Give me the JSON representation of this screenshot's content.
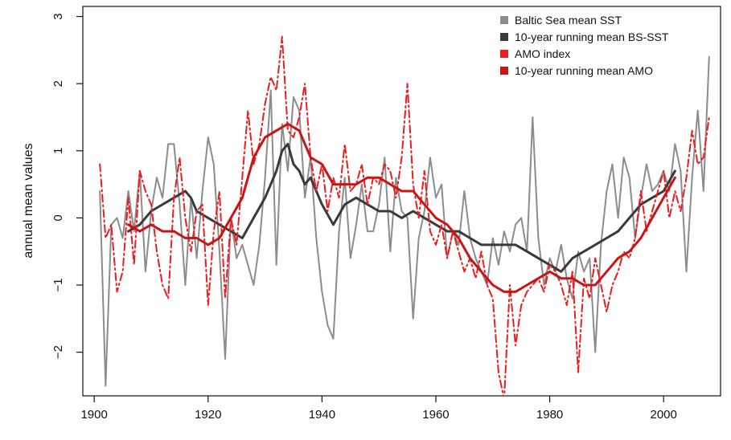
{
  "chart_data": {
    "type": "line",
    "title": "",
    "xlabel": "",
    "ylabel": "annual mean values",
    "xlim": [
      1898,
      2010
    ],
    "ylim": [
      -2.65,
      3.15
    ],
    "x_ticks": [
      1900,
      1920,
      1940,
      1960,
      1980,
      2000
    ],
    "y_ticks": [
      -2,
      -1,
      0,
      1,
      2,
      3
    ],
    "x_tick_labels": [
      "1900",
      "1920",
      "1940",
      "1960",
      "1980",
      "2000"
    ],
    "y_tick_labels": [
      "−2",
      "−1",
      "0",
      "1",
      "2",
      "3"
    ],
    "grid": false,
    "legend_position": "top-right",
    "series": [
      {
        "name": "Baltic Sea mean SST",
        "color": "#8c8c8c",
        "line_style": "solid",
        "x": [
          1901,
          1902,
          1903,
          1904,
          1905,
          1906,
          1907,
          1908,
          1909,
          1910,
          1911,
          1912,
          1913,
          1914,
          1915,
          1916,
          1917,
          1918,
          1919,
          1920,
          1921,
          1922,
          1923,
          1924,
          1925,
          1926,
          1927,
          1928,
          1929,
          1930,
          1931,
          1932,
          1933,
          1934,
          1935,
          1936,
          1937,
          1938,
          1939,
          1940,
          1941,
          1942,
          1943,
          1944,
          1945,
          1946,
          1947,
          1948,
          1949,
          1950,
          1951,
          1952,
          1953,
          1954,
          1955,
          1956,
          1957,
          1958,
          1959,
          1960,
          1961,
          1962,
          1963,
          1964,
          1965,
          1966,
          1967,
          1968,
          1969,
          1970,
          1971,
          1972,
          1973,
          1974,
          1975,
          1976,
          1977,
          1978,
          1979,
          1980,
          1981,
          1982,
          1983,
          1984,
          1985,
          1986,
          1987,
          1988,
          1989,
          1990,
          1991,
          1992,
          1993,
          1994,
          1995,
          1996,
          1997,
          1998,
          1999,
          2000,
          2001,
          2002,
          2003,
          2004,
          2005,
          2006,
          2007,
          2008
        ],
        "y": [
          0.4,
          -2.5,
          -0.1,
          0.0,
          -0.3,
          0.4,
          -0.2,
          0.7,
          -0.8,
          0.1,
          0.6,
          0.3,
          1.1,
          1.1,
          0.2,
          -1.0,
          0.3,
          -0.6,
          0.4,
          1.2,
          0.8,
          -0.5,
          -2.1,
          0.0,
          -0.6,
          -0.4,
          -0.7,
          -1.0,
          -0.4,
          0.6,
          1.9,
          -0.7,
          1.4,
          0.7,
          1.8,
          1.6,
          0.3,
          0.9,
          -0.3,
          -1.1,
          -1.6,
          -1.8,
          -0.2,
          0.6,
          -0.6,
          -0.1,
          0.5,
          -0.2,
          -0.2,
          0.2,
          0.9,
          -0.5,
          0.6,
          0.1,
          0.0,
          -1.5,
          -0.3,
          0.1,
          0.9,
          0.3,
          0.5,
          -0.6,
          -0.2,
          -0.4,
          0.4,
          -0.3,
          -0.6,
          -0.8,
          -1.0,
          -0.3,
          -0.7,
          -0.2,
          -0.5,
          -0.1,
          0.0,
          -0.5,
          1.5,
          -0.3,
          -1.0,
          -0.6,
          -0.8,
          -0.4,
          -0.9,
          -1.2,
          -0.5,
          -0.8,
          -0.6,
          -2.0,
          -0.4,
          0.4,
          0.8,
          0.0,
          0.9,
          0.6,
          -0.3,
          0.3,
          0.8,
          0.4,
          0.5,
          0.7,
          0.4,
          1.1,
          0.7,
          -0.8,
          0.6,
          1.6,
          0.4,
          2.4
        ]
      },
      {
        "name": "10-year running mean BS-SST",
        "color": "#3a3a3a",
        "line_style": "solid",
        "x": [
          1906,
          1908,
          1910,
          1912,
          1914,
          1916,
          1917,
          1918,
          1920,
          1922,
          1924,
          1926,
          1928,
          1930,
          1932,
          1933,
          1934,
          1935,
          1936,
          1937,
          1938,
          1940,
          1942,
          1944,
          1946,
          1948,
          1950,
          1952,
          1954,
          1956,
          1958,
          1960,
          1962,
          1964,
          1966,
          1968,
          1970,
          1972,
          1974,
          1976,
          1978,
          1980,
          1982,
          1984,
          1986,
          1988,
          1990,
          1992,
          1994,
          1996,
          1998,
          2000,
          2002
        ],
        "y": [
          -0.2,
          -0.1,
          0.1,
          0.2,
          0.3,
          0.4,
          0.3,
          0.1,
          0.0,
          -0.1,
          -0.2,
          -0.3,
          0.0,
          0.3,
          0.7,
          1.0,
          1.1,
          0.8,
          0.7,
          0.5,
          0.6,
          0.2,
          -0.1,
          0.2,
          0.3,
          0.2,
          0.1,
          0.1,
          0.0,
          0.1,
          0.0,
          -0.1,
          -0.2,
          -0.2,
          -0.3,
          -0.4,
          -0.4,
          -0.4,
          -0.4,
          -0.5,
          -0.6,
          -0.7,
          -0.8,
          -0.6,
          -0.5,
          -0.4,
          -0.3,
          -0.2,
          0.0,
          0.2,
          0.3,
          0.4,
          0.7
        ]
      },
      {
        "name": "AMO index",
        "color": "#ee1c1c",
        "line_style": "dashdot",
        "x": [
          1901,
          1902,
          1903,
          1904,
          1905,
          1906,
          1907,
          1908,
          1909,
          1910,
          1911,
          1912,
          1913,
          1914,
          1915,
          1916,
          1917,
          1918,
          1919,
          1920,
          1921,
          1922,
          1923,
          1924,
          1925,
          1926,
          1927,
          1928,
          1929,
          1930,
          1931,
          1932,
          1933,
          1934,
          1935,
          1936,
          1937,
          1938,
          1939,
          1940,
          1941,
          1942,
          1943,
          1944,
          1945,
          1946,
          1947,
          1948,
          1949,
          1950,
          1951,
          1952,
          1953,
          1954,
          1955,
          1956,
          1957,
          1958,
          1959,
          1960,
          1961,
          1962,
          1963,
          1964,
          1965,
          1966,
          1967,
          1968,
          1969,
          1970,
          1971,
          1972,
          1973,
          1974,
          1975,
          1976,
          1977,
          1978,
          1979,
          1980,
          1981,
          1982,
          1983,
          1984,
          1985,
          1986,
          1987,
          1988,
          1989,
          1990,
          1991,
          1992,
          1993,
          1994,
          1995,
          1996,
          1997,
          1998,
          1999,
          2000,
          2001,
          2002,
          2003,
          2004,
          2005,
          2006,
          2007,
          2008
        ],
        "y": [
          0.8,
          -0.3,
          -0.1,
          -1.1,
          -0.8,
          0.3,
          -0.7,
          0.7,
          0.4,
          0.2,
          -0.5,
          -1.0,
          -1.2,
          0.3,
          0.9,
          0.0,
          -0.5,
          0.1,
          0.2,
          -1.3,
          -0.2,
          0.4,
          -1.2,
          0.0,
          -0.4,
          0.6,
          1.6,
          0.8,
          1.1,
          1.7,
          2.1,
          1.9,
          2.7,
          1.3,
          1.2,
          1.5,
          2.0,
          0.9,
          0.4,
          0.8,
          0.1,
          0.6,
          0.3,
          1.1,
          0.4,
          0.5,
          0.8,
          0.2,
          0.6,
          0.5,
          0.8,
          0.7,
          0.3,
          0.9,
          2.0,
          0.5,
          0.0,
          0.7,
          -0.2,
          -0.4,
          -0.1,
          -0.6,
          -0.2,
          -0.5,
          -0.8,
          -0.6,
          -0.9,
          -0.5,
          -1.0,
          -1.2,
          -2.3,
          -2.7,
          -1.0,
          -1.9,
          -1.3,
          -1.1,
          -1.0,
          -0.9,
          -1.1,
          -0.7,
          -0.8,
          -1.0,
          -1.3,
          -0.8,
          -2.3,
          -0.9,
          -1.2,
          -0.6,
          -1.0,
          -1.4,
          -1.0,
          -0.8,
          -0.5,
          -0.6,
          -0.3,
          0.4,
          -0.2,
          0.1,
          0.4,
          0.7,
          0.0,
          0.4,
          0.1,
          0.6,
          1.3,
          0.8,
          0.9,
          1.5
        ]
      },
      {
        "name": "10-year running mean AMO",
        "color": "#c91515",
        "line_style": "solid",
        "x": [
          1906,
          1908,
          1910,
          1912,
          1914,
          1916,
          1918,
          1920,
          1922,
          1924,
          1926,
          1928,
          1930,
          1932,
          1934,
          1936,
          1938,
          1940,
          1942,
          1944,
          1946,
          1948,
          1950,
          1952,
          1954,
          1956,
          1958,
          1960,
          1962,
          1964,
          1966,
          1968,
          1970,
          1972,
          1974,
          1976,
          1978,
          1980,
          1982,
          1984,
          1986,
          1988,
          1990,
          1992,
          1994,
          1996,
          1998,
          2000,
          2002
        ],
        "y": [
          -0.1,
          -0.2,
          -0.1,
          -0.2,
          -0.2,
          -0.3,
          -0.3,
          -0.4,
          -0.3,
          0.0,
          0.3,
          0.9,
          1.2,
          1.3,
          1.4,
          1.3,
          0.9,
          0.8,
          0.5,
          0.5,
          0.5,
          0.6,
          0.6,
          0.5,
          0.4,
          0.4,
          0.2,
          0.0,
          -0.1,
          -0.3,
          -0.6,
          -0.8,
          -1.0,
          -1.1,
          -1.1,
          -1.0,
          -0.9,
          -0.8,
          -0.9,
          -0.9,
          -1.0,
          -1.0,
          -0.8,
          -0.6,
          -0.5,
          -0.3,
          0.0,
          0.3,
          0.6
        ]
      }
    ]
  }
}
